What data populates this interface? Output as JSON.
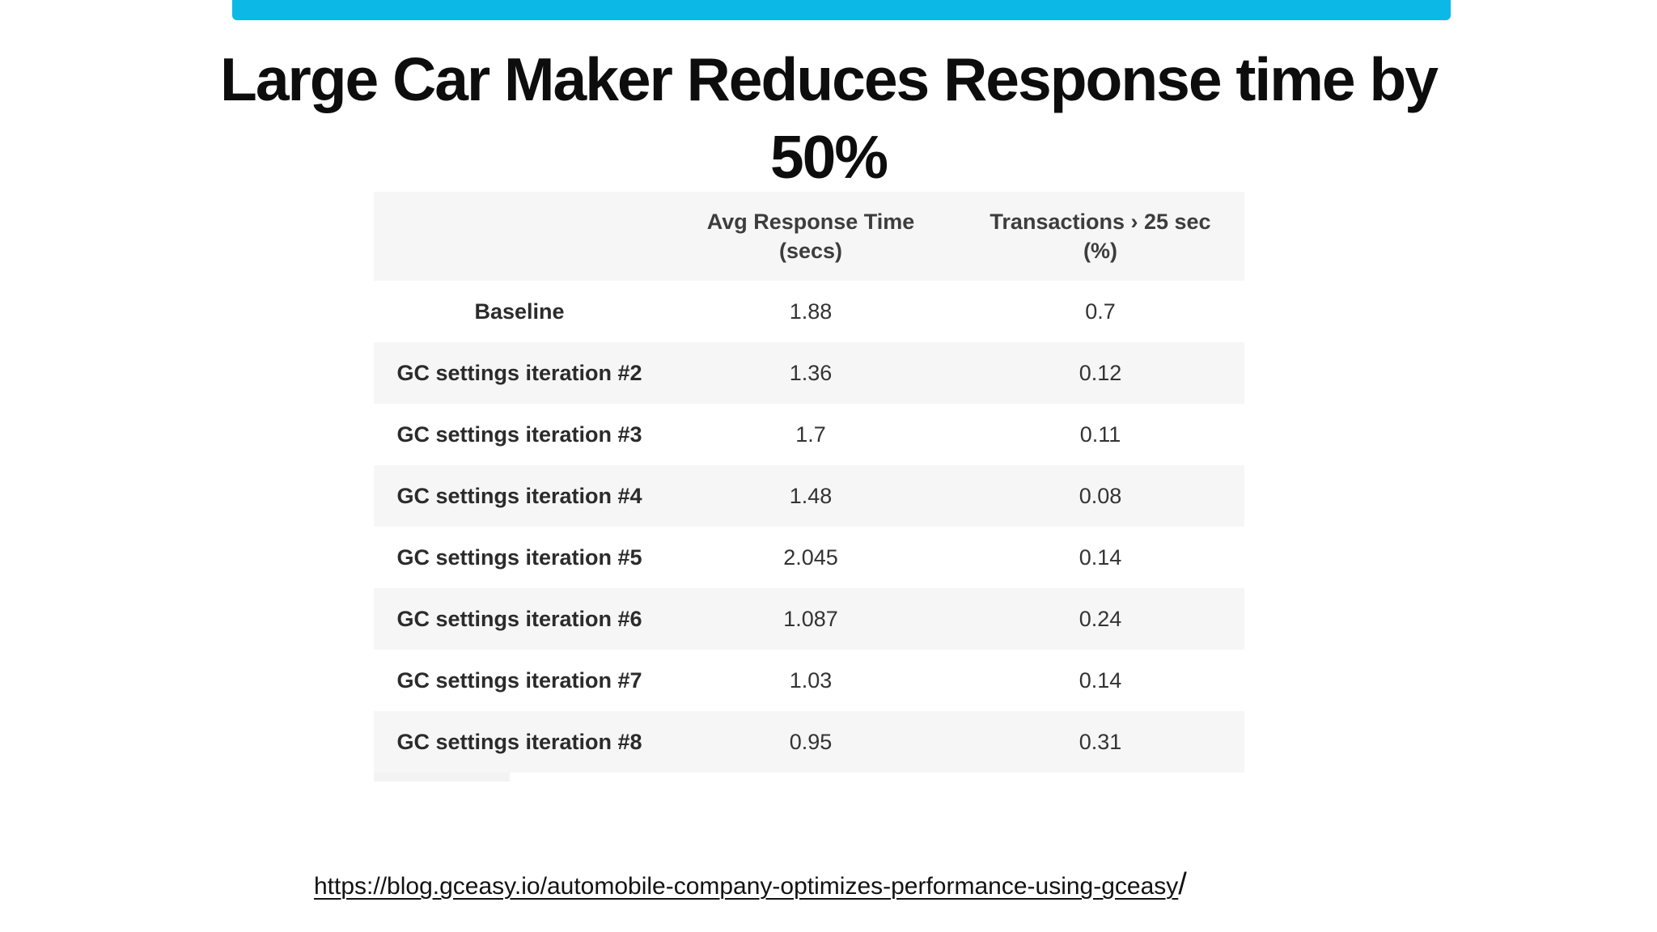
{
  "accent_bar": {
    "color": "#0cb8e6"
  },
  "title": {
    "line1": "Large Car Maker Reduces Response time by",
    "line2": "50%"
  },
  "table": {
    "header": {
      "col1": "",
      "col2_line1": "Avg Response Time",
      "col2_line2": "(secs)",
      "col3_line1": "Transactions › 25 sec",
      "col3_line2": "(%)"
    },
    "rows": [
      {
        "label": "Baseline",
        "avg_response_time": "1.88",
        "transactions_pct": "0.7"
      },
      {
        "label": "GC settings iteration #2",
        "avg_response_time": "1.36",
        "transactions_pct": "0.12"
      },
      {
        "label": "GC settings iteration #3",
        "avg_response_time": "1.7",
        "transactions_pct": "0.11"
      },
      {
        "label": "GC settings iteration #4",
        "avg_response_time": "1.48",
        "transactions_pct": "0.08"
      },
      {
        "label": "GC settings iteration #5",
        "avg_response_time": "2.045",
        "transactions_pct": "0.14"
      },
      {
        "label": "GC settings iteration #6",
        "avg_response_time": "1.087",
        "transactions_pct": "0.24"
      },
      {
        "label": "GC settings iteration #7",
        "avg_response_time": "1.03",
        "transactions_pct": "0.14"
      },
      {
        "label": "GC settings iteration #8",
        "avg_response_time": "0.95",
        "transactions_pct": "0.31"
      }
    ]
  },
  "footer": {
    "link_text": "https://blog.gceasy.io/automobile-company-optimizes-performance-using-gceasy",
    "suffix": "/"
  }
}
